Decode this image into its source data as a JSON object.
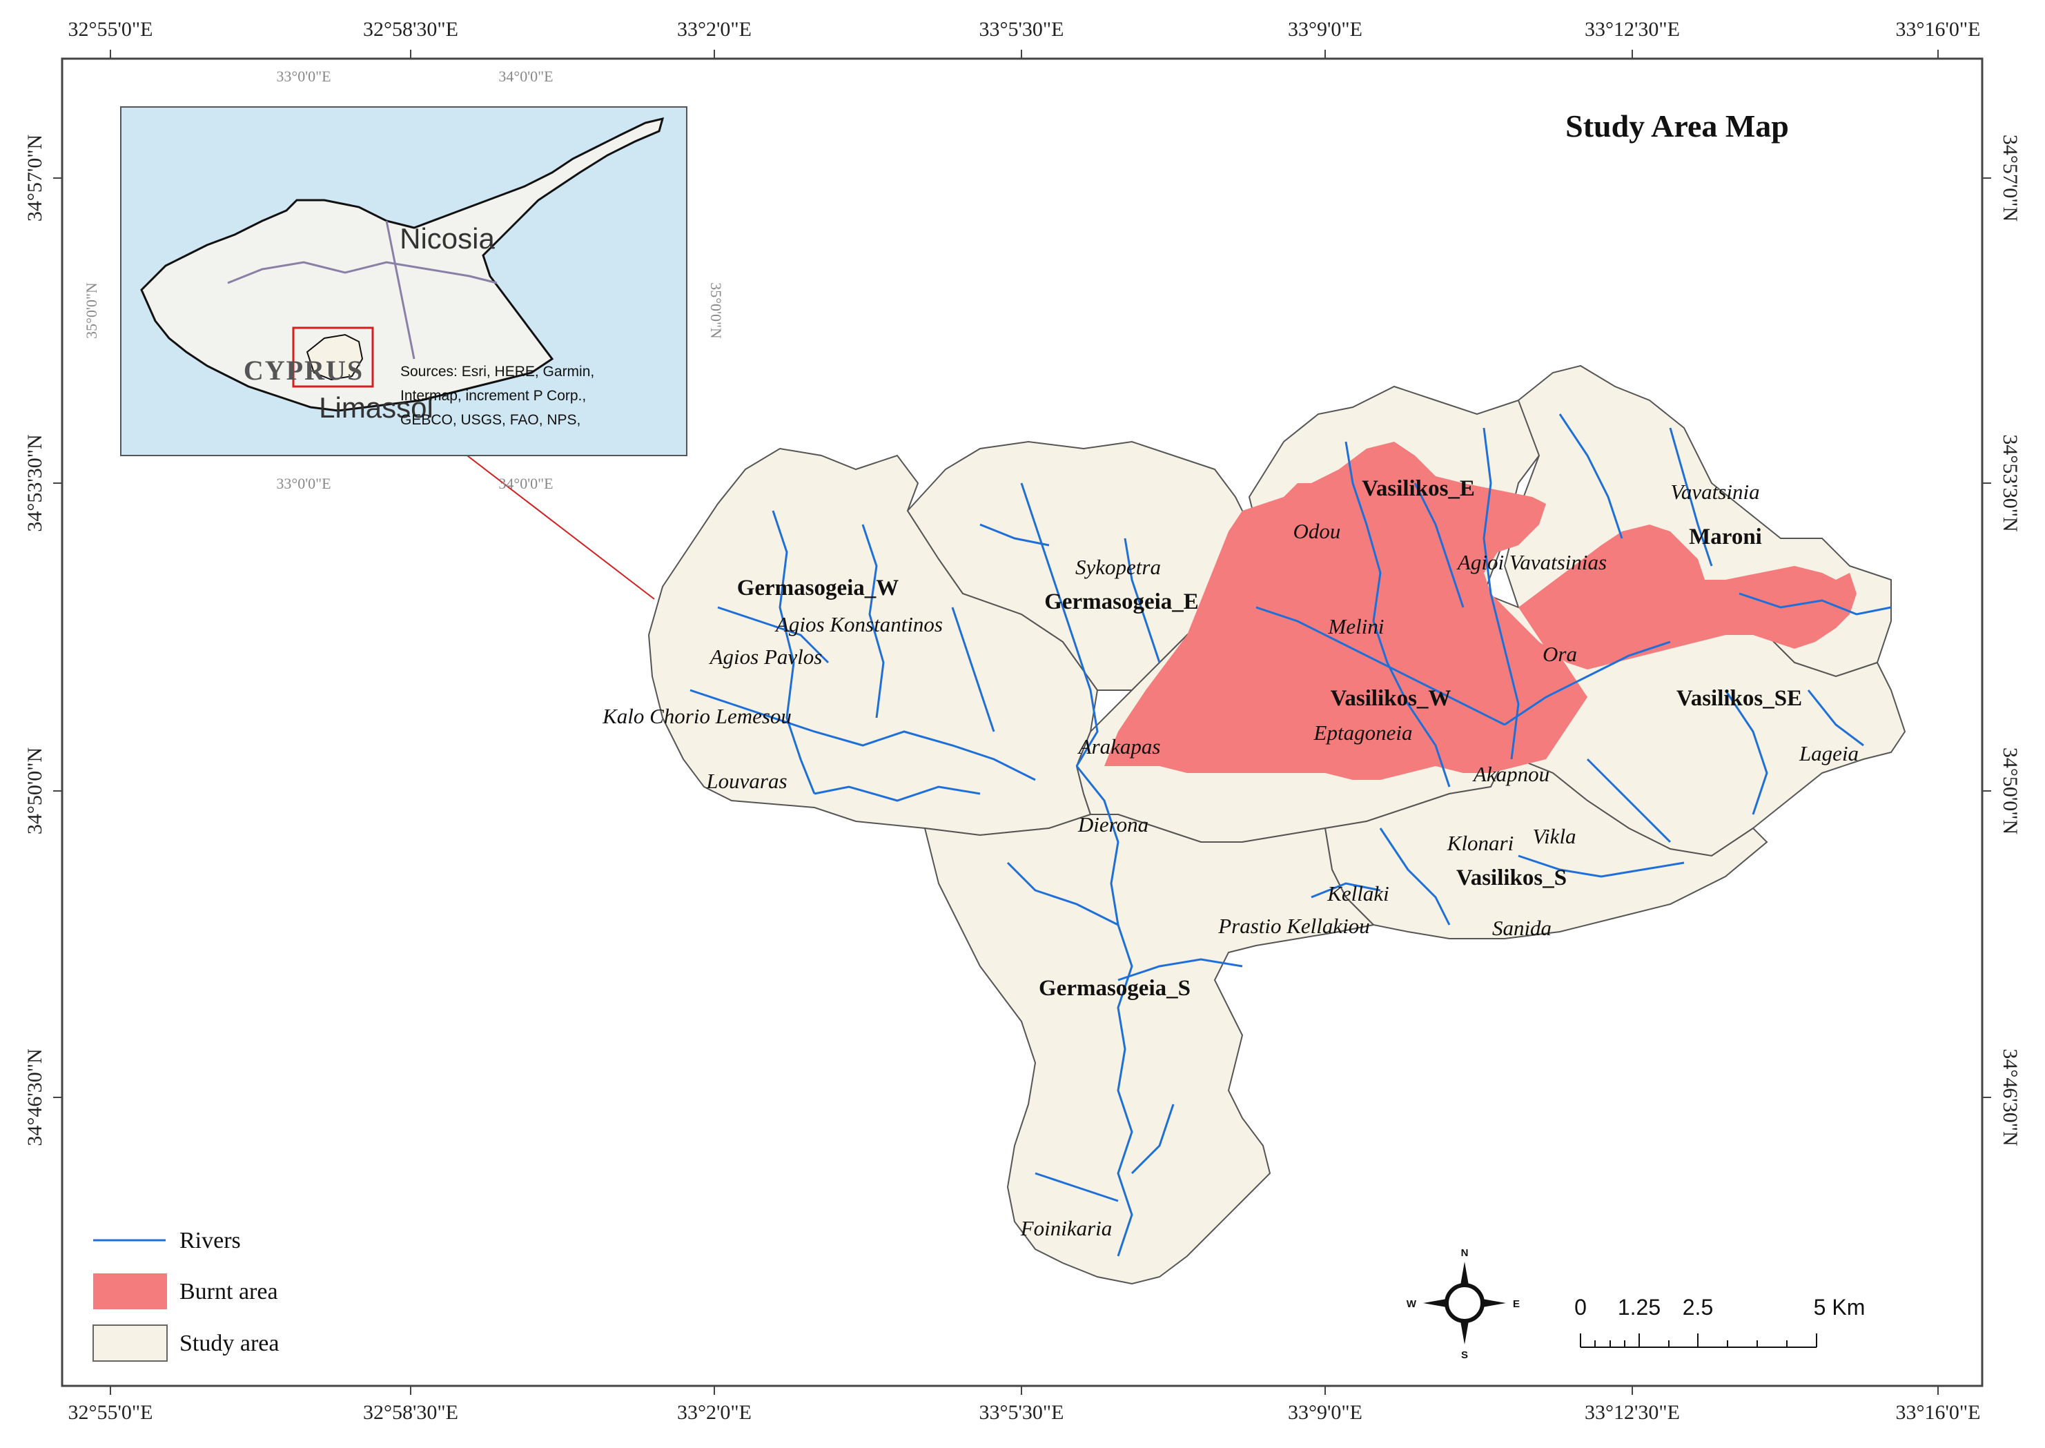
{
  "title": "Study Area Map",
  "coords": {
    "top": [
      "32°55'0\"E",
      "32°58'30\"E",
      "33°2'0\"E",
      "33°5'30\"E",
      "33°9'0\"E",
      "33°12'30\"E",
      "33°16'0\"E"
    ],
    "bottom": [
      "32°55'0\"E",
      "32°58'30\"E",
      "33°2'0\"E",
      "33°5'30\"E",
      "33°9'0\"E",
      "33°12'30\"E",
      "33°16'0\"E"
    ],
    "left": [
      "34°57'0\"N",
      "34°53'30\"N",
      "34°50'0\"N",
      "34°46'30\"N"
    ],
    "right": [
      "34°57'0\"N",
      "34°53'30\"N",
      "34°50'0\"N",
      "34°46'30\"N"
    ]
  },
  "inset": {
    "coords_top": [
      "33°0'0\"E",
      "34°0'0\"E"
    ],
    "coords_bottom": [
      "33°0'0\"E",
      "34°0'0\"E"
    ],
    "coords_left": [
      "35°0'0\"N"
    ],
    "coords_right": [
      "35°0'0\"N"
    ],
    "city_1": "Nicosia",
    "country": "CYPRUS",
    "city_2": "Limassol",
    "sources": [
      "Sources: Esri, HERE, Garmin,",
      "Intermap, increment P Corp.,",
      "GEBCO, USGS, FAO, NPS,"
    ]
  },
  "basins": [
    "Germasogeia_W",
    "Germasogeia_E",
    "Vasilikos_E",
    "Maroni",
    "Vasilikos_W",
    "Vasilikos_SE",
    "Vasilikos_S",
    "Germasogeia_S"
  ],
  "villages": [
    "Agios Konstantinos",
    "Agios Pavlos",
    "Kalo Chorio Lemesou",
    "Louvaras",
    "Sykopetra",
    "Arakapas",
    "Dierona",
    "Odou",
    "Melini",
    "Agioi Vavatsinias",
    "Vavatsinia",
    "Ora",
    "Eptagoneia",
    "Akapnou",
    "Klonari",
    "Vikla",
    "Kellaki",
    "Prastio Kellakiou",
    "Sanida",
    "Lageia",
    "Foinikaria"
  ],
  "legend": {
    "rivers": "Rivers",
    "burnt": "Burnt area",
    "study": "Study area"
  },
  "scale": {
    "labels": [
      "0",
      "1.25",
      "2.5",
      "5 Km"
    ]
  },
  "compass": {
    "n": "N",
    "s": "S",
    "e": "E",
    "w": "W"
  },
  "colors": {
    "study_area": "#f6f2e6",
    "burnt_area": "#f47c7c",
    "rivers": "#1f6fd8",
    "inset_sea": "#cfe6f3"
  }
}
